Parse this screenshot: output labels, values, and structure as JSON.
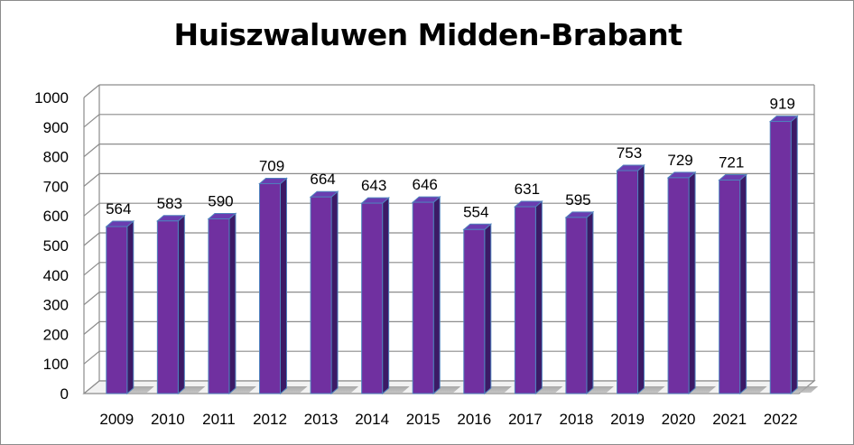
{
  "chart_data": {
    "type": "bar",
    "title": "Huiszwaluwen Midden-Brabant",
    "categories": [
      "2009",
      "2010",
      "2011",
      "2012",
      "2013",
      "2014",
      "2015",
      "2016",
      "2017",
      "2018",
      "2019",
      "2020",
      "2021",
      "2022"
    ],
    "values": [
      564,
      583,
      590,
      709,
      664,
      643,
      646,
      554,
      631,
      595,
      753,
      729,
      721,
      919
    ],
    "xlabel": "",
    "ylabel": "",
    "ylim": [
      0,
      1000
    ],
    "yticks": [
      "0",
      "100",
      "200",
      "300",
      "400",
      "500",
      "600",
      "700",
      "800",
      "900",
      "1000"
    ],
    "grid": true,
    "legend": "none",
    "style": "3d-column",
    "colors": {
      "bar_front": "#7030a0",
      "bar_side": "#3c1a66",
      "bar_top": "#6a3db0",
      "bar_edge": "#4f81bd",
      "grid": "#8c8c8c",
      "background": "#ffffff"
    }
  }
}
